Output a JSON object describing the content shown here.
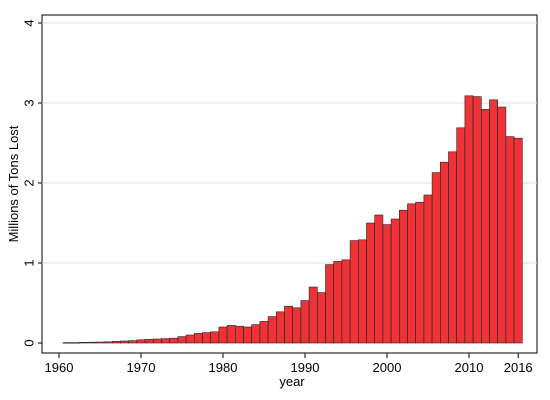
{
  "chart_data": {
    "type": "bar",
    "xlabel": "year",
    "ylabel": "Millions of Tons Lost",
    "xlim": [
      1960,
      2016
    ],
    "ylim": [
      0,
      4
    ],
    "x_ticks": [
      1960,
      1970,
      1980,
      1990,
      2000,
      2010,
      2016
    ],
    "y_ticks": [
      0,
      1,
      2,
      3,
      4
    ],
    "grid": "horizontal",
    "bar_color": "#ee3338",
    "bar_edge_color": "#222222",
    "categories": [
      1961,
      1962,
      1963,
      1964,
      1965,
      1966,
      1967,
      1968,
      1969,
      1970,
      1971,
      1972,
      1973,
      1974,
      1975,
      1976,
      1977,
      1978,
      1979,
      1980,
      1981,
      1982,
      1983,
      1984,
      1985,
      1986,
      1987,
      1988,
      1989,
      1990,
      1991,
      1992,
      1993,
      1994,
      1995,
      1996,
      1997,
      1998,
      1999,
      2000,
      2001,
      2002,
      2003,
      2004,
      2005,
      2006,
      2007,
      2008,
      2009,
      2010,
      2011,
      2012,
      2013,
      2014,
      2015,
      2016
    ],
    "values": [
      0.005,
      0.005,
      0.008,
      0.01,
      0.012,
      0.015,
      0.02,
      0.025,
      0.03,
      0.04,
      0.045,
      0.05,
      0.055,
      0.06,
      0.08,
      0.1,
      0.12,
      0.13,
      0.14,
      0.2,
      0.22,
      0.21,
      0.2,
      0.23,
      0.27,
      0.33,
      0.39,
      0.46,
      0.44,
      0.53,
      0.7,
      0.63,
      0.98,
      1.02,
      1.04,
      1.28,
      1.29,
      1.5,
      1.6,
      1.48,
      1.55,
      1.66,
      1.74,
      1.76,
      1.85,
      2.13,
      2.26,
      2.39,
      2.69,
      3.09,
      3.08,
      2.92,
      3.04,
      2.95,
      2.58,
      2.56
    ]
  }
}
